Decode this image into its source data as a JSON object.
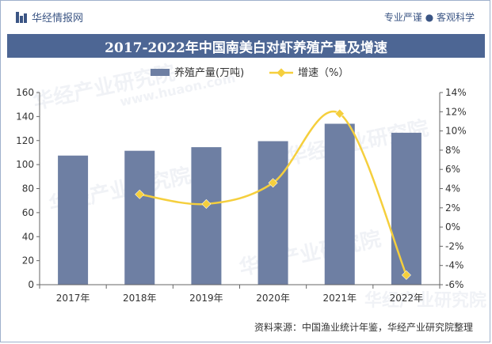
{
  "header": {
    "brand": "华经情报网",
    "motto": "专业严谨 ● 客观科学",
    "title": "2017-2022年中国南美白对虾养殖产量及增速"
  },
  "footer": {
    "source": "资料来源：中国渔业统计年鉴，华经产业研究院整理"
  },
  "watermarks": [
    "华经产业研究院",
    "www.huaon.com",
    "华经产业研究院",
    "华经产业研究院",
    "华经产业研究院",
    "华经产业研究院"
  ],
  "colors": {
    "bar": "#6e7fa3",
    "line": "#f5cf3d",
    "title_bg": "#4d6694",
    "brand": "#3b5584"
  },
  "chart_data": {
    "type": "bar",
    "categories": [
      "2017年",
      "2018年",
      "2019年",
      "2020年",
      "2021年",
      "2022年"
    ],
    "series": [
      {
        "name": "养殖产量(万吨)",
        "type": "bar",
        "axis": "left",
        "values": [
          107.5,
          111.5,
          114.5,
          119.5,
          134,
          126.5
        ]
      },
      {
        "name": "增速（%）",
        "type": "line",
        "axis": "right",
        "values": [
          null,
          3.4,
          2.4,
          4.6,
          11.8,
          -5.0
        ]
      }
    ],
    "y_left": {
      "min": 0,
      "max": 160,
      "step": 20
    },
    "y_right": {
      "min": -6,
      "max": 14,
      "step": 2,
      "suffix": "%"
    },
    "legend_position": "top-center",
    "grid": false
  }
}
